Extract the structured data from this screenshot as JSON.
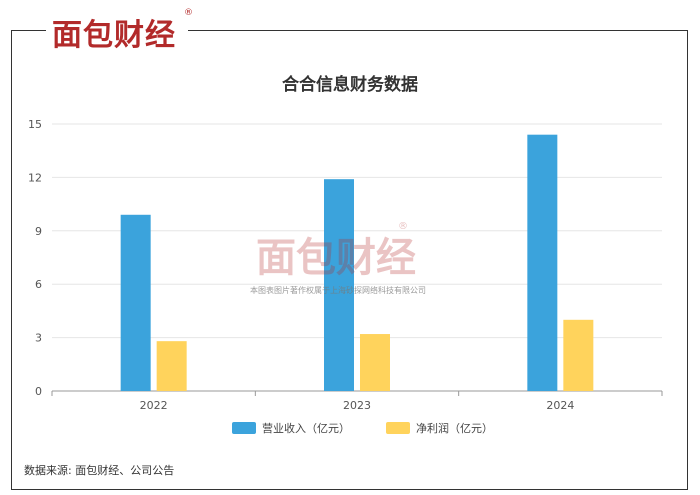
{
  "brand": {
    "logo_text": "面包财经",
    "reg_mark": "®"
  },
  "watermark": {
    "logo_text": "面包财经",
    "reg_mark": "®",
    "copyright": "本图表图片著作权属于上海砂探网络科技有限公司"
  },
  "source": "数据来源: 面包财经、公司公告",
  "colors": {
    "series_1": "#3ba3dc",
    "series_2": "#ffd35c",
    "brand_red": "#b22a2a"
  },
  "chart_data": {
    "type": "bar",
    "title": "合合信息财务数据",
    "categories": [
      "2022",
      "2023",
      "2024"
    ],
    "series": [
      {
        "name": "营业收入（亿元）",
        "values": [
          9.9,
          11.9,
          14.4
        ]
      },
      {
        "name": "净利润（亿元）",
        "values": [
          2.8,
          3.2,
          4.0
        ]
      }
    ],
    "ylim": [
      0,
      15
    ],
    "yticks": [
      "0",
      "3",
      "6",
      "9",
      "12",
      "15"
    ],
    "grid": true,
    "legend_position": "bottom"
  }
}
